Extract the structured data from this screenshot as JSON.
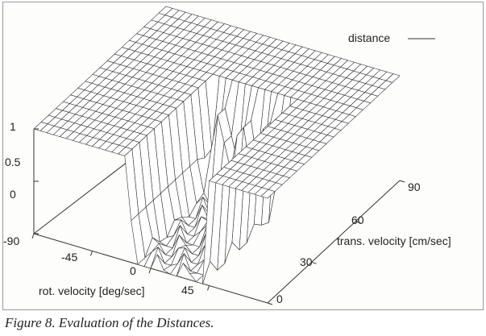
{
  "caption": "Figure 8. Evaluation of the Distances.",
  "chart_data": {
    "type": "surface",
    "legend": {
      "label": "distance",
      "position": "top-right"
    },
    "z_ticks": [
      "0",
      "0.5",
      "1"
    ],
    "rot_ticks": [
      "-90",
      "-45",
      "0",
      "45"
    ],
    "trans_ticks": [
      "0",
      "30",
      "60",
      "90"
    ],
    "xlabel": "rot. velocity [deg/sec]",
    "ylabel": "trans. velocity [cm/sec]",
    "xlim": [
      -90,
      90
    ],
    "ylim": [
      0,
      90
    ],
    "zlim": [
      0,
      1
    ],
    "description_of_shape": {
      "plateau_value": 1,
      "floor_value": 0,
      "rot_range_of_low_region": [
        -20,
        45
      ],
      "trans_range_of_low_region": [
        0,
        60
      ]
    },
    "colors": {
      "mesh": "#333333",
      "surface": "#ffffff"
    }
  }
}
